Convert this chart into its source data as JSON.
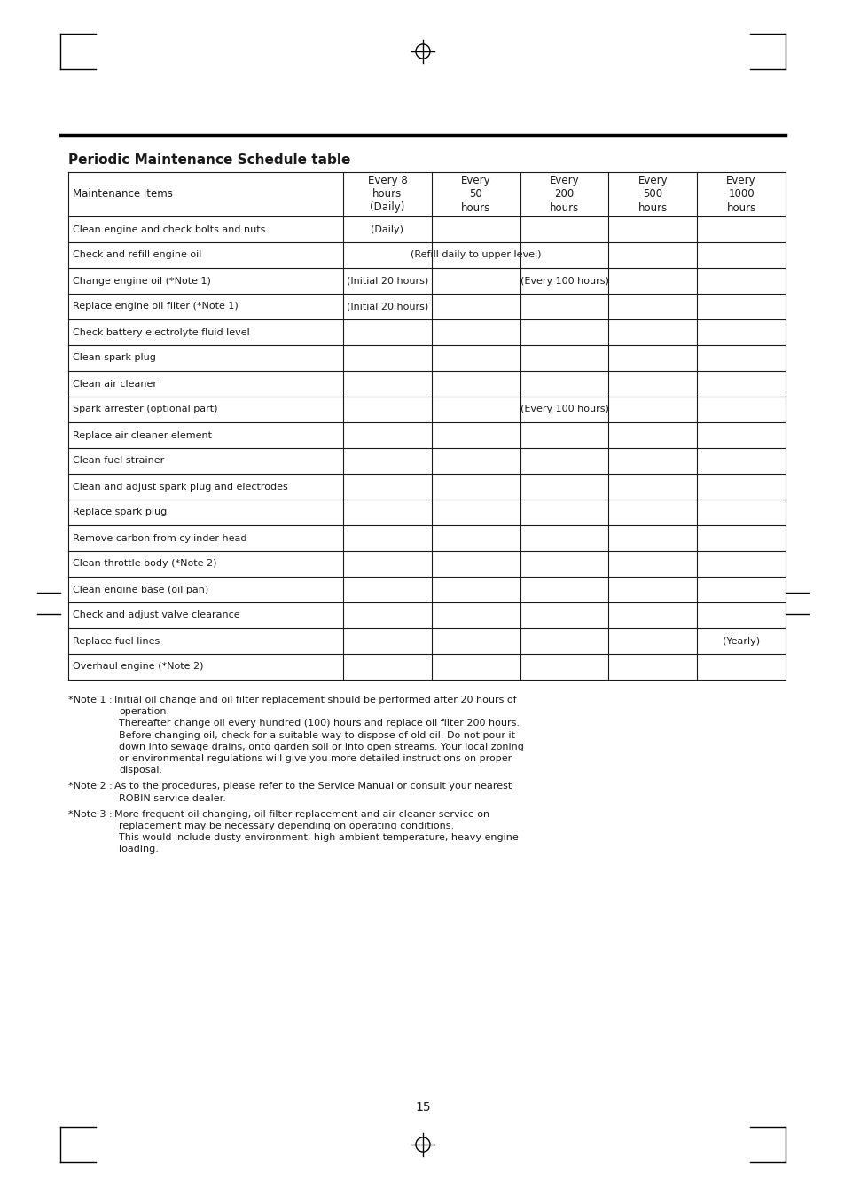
{
  "title": "Periodic Maintenance Schedule table",
  "page_number": "15",
  "col_headers": [
    "Maintenance Items",
    "Every 8\nhours\n(Daily)",
    "Every\n50\nhours",
    "Every\n200\nhours",
    "Every\n500\nhours",
    "Every\n1000\nhours"
  ],
  "rows": [
    {
      "item": "Clean engine and check bolts and nuts",
      "special": "daily_col1"
    },
    {
      "item": "Check and refill engine oil",
      "special": "refill_span"
    },
    {
      "item": "Change engine oil (*Note 1)",
      "special": "change_oil"
    },
    {
      "item": "Replace engine oil filter (*Note 1)",
      "special": "replace_filter"
    },
    {
      "item": "Check battery electrolyte fluid level",
      "special": "none"
    },
    {
      "item": "Clean spark plug",
      "special": "none"
    },
    {
      "item": "Clean air cleaner",
      "special": "none"
    },
    {
      "item": "Spark arrester (optional part)",
      "special": "spark_arrester"
    },
    {
      "item": "Replace air cleaner element",
      "special": "none"
    },
    {
      "item": "Clean fuel strainer",
      "special": "none"
    },
    {
      "item": "Clean and adjust spark plug and electrodes",
      "special": "none"
    },
    {
      "item": "Replace spark plug",
      "special": "none"
    },
    {
      "item": "Remove carbon from cylinder head",
      "special": "none"
    },
    {
      "item": "Clean throttle body (*Note 2)",
      "special": "none"
    },
    {
      "item": "Clean engine base (oil pan)",
      "special": "none"
    },
    {
      "item": "Check and adjust valve clearance",
      "special": "none"
    },
    {
      "item": "Replace fuel lines",
      "special": "yearly"
    },
    {
      "item": "Overhaul engine (*Note 2)",
      "special": "none"
    }
  ],
  "note1_label": "*Note 1 : ",
  "note1_line1": "Initial oil change and oil filter replacement should be performed after 20 hours of",
  "note1_rest": [
    "operation.",
    "Thereafter change oil every hundred (100) hours and replace oil filter 200 hours.",
    "Before changing oil, check for a suitable way to dispose of old oil. Do not pour it",
    "down into sewage drains, onto garden soil or into open streams. Your local zoning",
    "or environmental regulations will give you more detailed instructions on proper",
    "disposal."
  ],
  "note2_label": "*Note 2 : ",
  "note2_line1": "As to the procedures, please refer to the Service Manual or consult your nearest",
  "note2_rest": [
    "ROBIN service dealer."
  ],
  "note3_label": "*Note 3 : ",
  "note3_line1": "More frequent oil changing, oil filter replacement and air cleaner service on",
  "note3_rest": [
    "replacement may be necessary depending on operating conditions.",
    "This would include dusty environment, high ambient temperature, heavy engine",
    "loading."
  ],
  "bg_color": "#ffffff",
  "text_color": "#1a1a1a",
  "line_color": "#1a1a1a"
}
